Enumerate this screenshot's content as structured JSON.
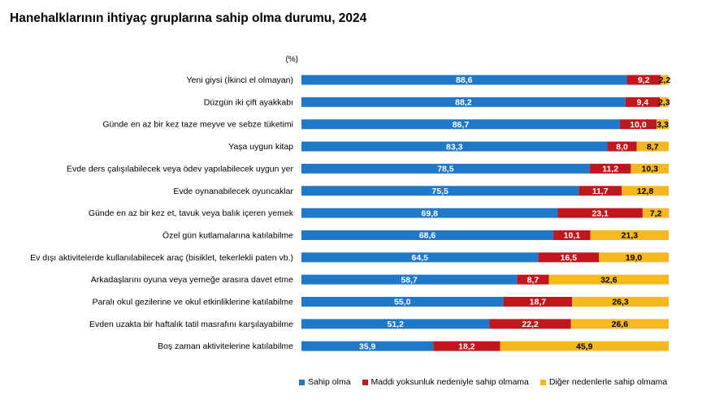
{
  "title": "Hanehalklarının ihtiyaç gruplarına sahip olma durumu, 2024",
  "chart_data": {
    "type": "bar",
    "orientation": "horizontal",
    "stacked": true,
    "unit_label": "(%)",
    "xlim": [
      0,
      100
    ],
    "grid": false,
    "legend_position": "bottom",
    "categories": [
      "Yeni giysi (İkinci el olmayan)",
      "Düzgün iki çift ayakkabı",
      "Günde en az bir kez taze meyve ve sebze tüketimi",
      "Yaşa uygun kitap",
      "Evde ders çalışılabilecek veya ödev yapılabilecek uygun yer",
      "Evde oynanabilecek oyuncaklar",
      "Günde en az bir kez et, tavuk veya balık içeren yemek",
      "Özel gün kutlamalarına katılabilme",
      "Ev dışı aktivitelerde kullanılabilecek araç (bisiklet, tekerlekli paten vb.)",
      "Arkadaşlarını oyuna veya yemeğe arasıra davet etme",
      "Paralı okul gezilerine ve okul etkinliklerine katılabilme",
      "Evden uzakta bir haftalık tatil masrafını karşılayabilme",
      "Boş zaman aktivitelerine katılabilme"
    ],
    "series": [
      {
        "name": "Sahip olma",
        "color": "#1F78C8",
        "label_color": "#ffffff",
        "values": [
          88.6,
          88.2,
          86.7,
          83.3,
          78.5,
          75.5,
          69.8,
          68.6,
          64.5,
          58.7,
          55.0,
          51.2,
          35.9
        ],
        "labels": [
          "88,6",
          "88,2",
          "86,7",
          "83,3",
          "78,5",
          "75,5",
          "69,8",
          "68,6",
          "64,5",
          "58,7",
          "55,0",
          "51,2",
          "35,9"
        ]
      },
      {
        "name": "Maddi yoksunluk nedeniyle sahip olmama",
        "color": "#C0161E",
        "label_color": "#ffffff",
        "values": [
          9.2,
          9.4,
          10.0,
          8.0,
          11.2,
          11.7,
          23.1,
          10.1,
          16.5,
          8.7,
          18.7,
          22.2,
          18.2
        ],
        "labels": [
          "9,2",
          "9,4",
          "10,0",
          "8,0",
          "11,2",
          "11,7",
          "23,1",
          "10,1",
          "16,5",
          "8,7",
          "18,7",
          "22,2",
          "18,2"
        ]
      },
      {
        "name": "Diğer nedenlerle sahip olmama",
        "color": "#F5B823",
        "label_color": "#000000",
        "values": [
          2.2,
          2.3,
          3.3,
          8.7,
          10.3,
          12.8,
          7.2,
          21.3,
          19.0,
          32.6,
          26.3,
          26.6,
          45.9
        ],
        "labels": [
          "2,2",
          "2,3",
          "3,3",
          "8,7",
          "10,3",
          "12,8",
          "7,2",
          "21,3",
          "19,0",
          "32,6",
          "26,3",
          "26,6",
          "45,9"
        ]
      }
    ]
  }
}
